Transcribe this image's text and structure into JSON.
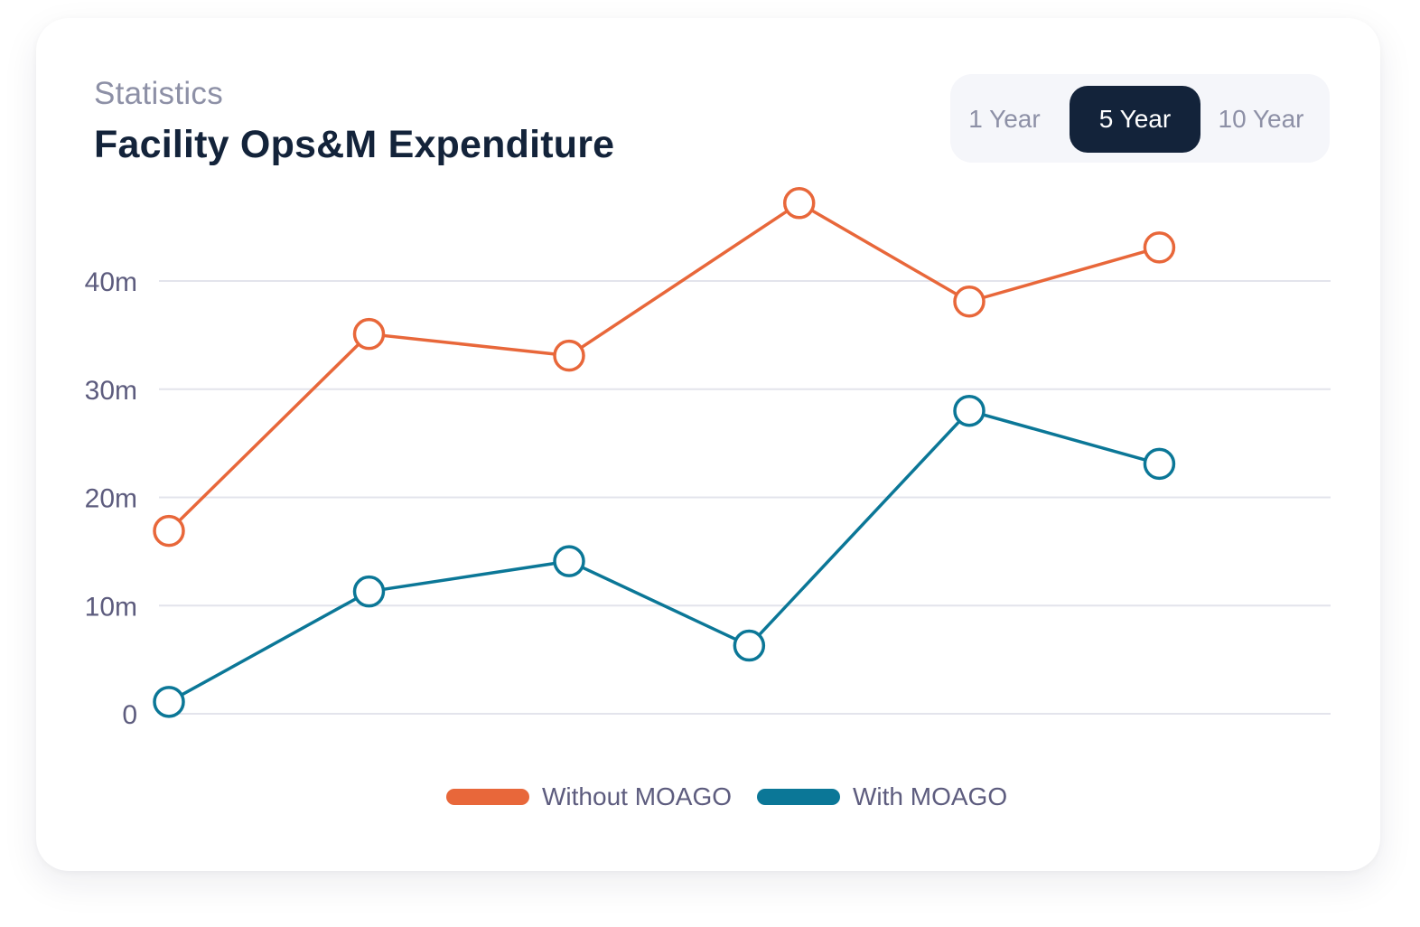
{
  "header": {
    "eyebrow": "Statistics",
    "title": "Facility Ops&M Expenditure"
  },
  "range_selector": {
    "options": [
      "1 Year",
      "5 Year",
      "10 Year"
    ],
    "selected": "5 Year"
  },
  "colors": {
    "without": "#e8673a",
    "with": "#0b7797",
    "grid": "#e3e4ec",
    "tick_text": "#5d5c7e"
  },
  "chart_data": {
    "type": "line",
    "title": "Facility Ops&M Expenditure",
    "ylim": [
      0,
      40
    ],
    "y_ticks": [
      {
        "value": 0,
        "label": "0"
      },
      {
        "value": 10,
        "label": "10m"
      },
      {
        "value": 20,
        "label": "20m"
      },
      {
        "value": 30,
        "label": "30m"
      },
      {
        "value": 40,
        "label": "40m"
      }
    ],
    "grid": true,
    "legend_position": "bottom-center",
    "marker": "hollow-circle",
    "series": [
      {
        "name": "Without MOAGO",
        "color": "#e8673a",
        "points": [
          {
            "x": 0.0,
            "y": 16.9
          },
          {
            "x": 1.0,
            "y": 35.1
          },
          {
            "x": 2.0,
            "y": 33.1
          },
          {
            "x": 3.15,
            "y": 47.2
          },
          {
            "x": 4.0,
            "y": 38.1
          },
          {
            "x": 4.95,
            "y": 43.1
          }
        ]
      },
      {
        "name": "With MOAGO",
        "color": "#0b7797",
        "points": [
          {
            "x": 0.0,
            "y": 1.1
          },
          {
            "x": 1.0,
            "y": 11.3
          },
          {
            "x": 2.0,
            "y": 14.1
          },
          {
            "x": 2.9,
            "y": 6.3
          },
          {
            "x": 4.0,
            "y": 28.0
          },
          {
            "x": 4.95,
            "y": 23.1
          }
        ]
      }
    ]
  }
}
